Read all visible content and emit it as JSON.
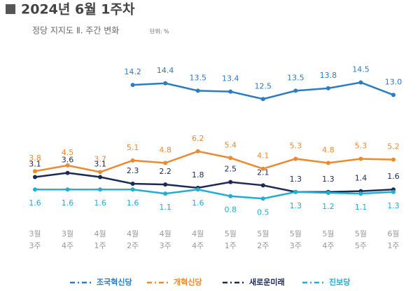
{
  "chart_data": {
    "type": "line",
    "title": "2024년 6월 1주차",
    "subtitle": "정당 지지도 Ⅱ. 주간 변화",
    "unit_note": "단위: %",
    "categories": [
      [
        "3월",
        "3주"
      ],
      [
        "3월",
        "4주"
      ],
      [
        "4월",
        "1주"
      ],
      [
        "4월",
        "2주"
      ],
      [
        "4월",
        "3주"
      ],
      [
        "4월",
        "4주"
      ],
      [
        "5월",
        "1주"
      ],
      [
        "5월",
        "2주"
      ],
      [
        "5월",
        "3주"
      ],
      [
        "5월",
        "4주"
      ],
      [
        "5월",
        "5주"
      ],
      [
        "6월",
        "1주"
      ]
    ],
    "ylim": [
      -1,
      17
    ],
    "series": [
      {
        "name": "조국혁신당",
        "color": "#2a7cc7",
        "label_position": "above",
        "values": [
          null,
          null,
          null,
          14.2,
          14.4,
          13.5,
          13.4,
          12.5,
          13.5,
          13.8,
          14.5,
          13.0
        ],
        "value_labels": [
          null,
          null,
          null,
          "14.2",
          "14.4",
          "13.5",
          "13.4",
          "12.5",
          "13.5",
          "13.8",
          "14.5",
          "13.0"
        ]
      },
      {
        "name": "개혁신당",
        "color": "#ec8a30",
        "label_position": "above",
        "values": [
          3.8,
          4.5,
          3.7,
          5.1,
          4.8,
          6.2,
          5.4,
          4.1,
          5.3,
          4.8,
          5.3,
          5.2
        ]
      },
      {
        "name": "새로운미래",
        "color": "#1c2a55",
        "label_position": "above",
        "values": [
          3.1,
          3.6,
          3.1,
          2.3,
          2.2,
          1.8,
          2.5,
          2.1,
          1.3,
          1.3,
          1.4,
          1.6
        ]
      },
      {
        "name": "진보당",
        "color": "#22aed0",
        "label_position": "below",
        "values": [
          1.6,
          1.6,
          1.6,
          1.6,
          1.1,
          1.6,
          0.8,
          0.5,
          1.3,
          1.2,
          1.1,
          1.3
        ]
      }
    ]
  }
}
